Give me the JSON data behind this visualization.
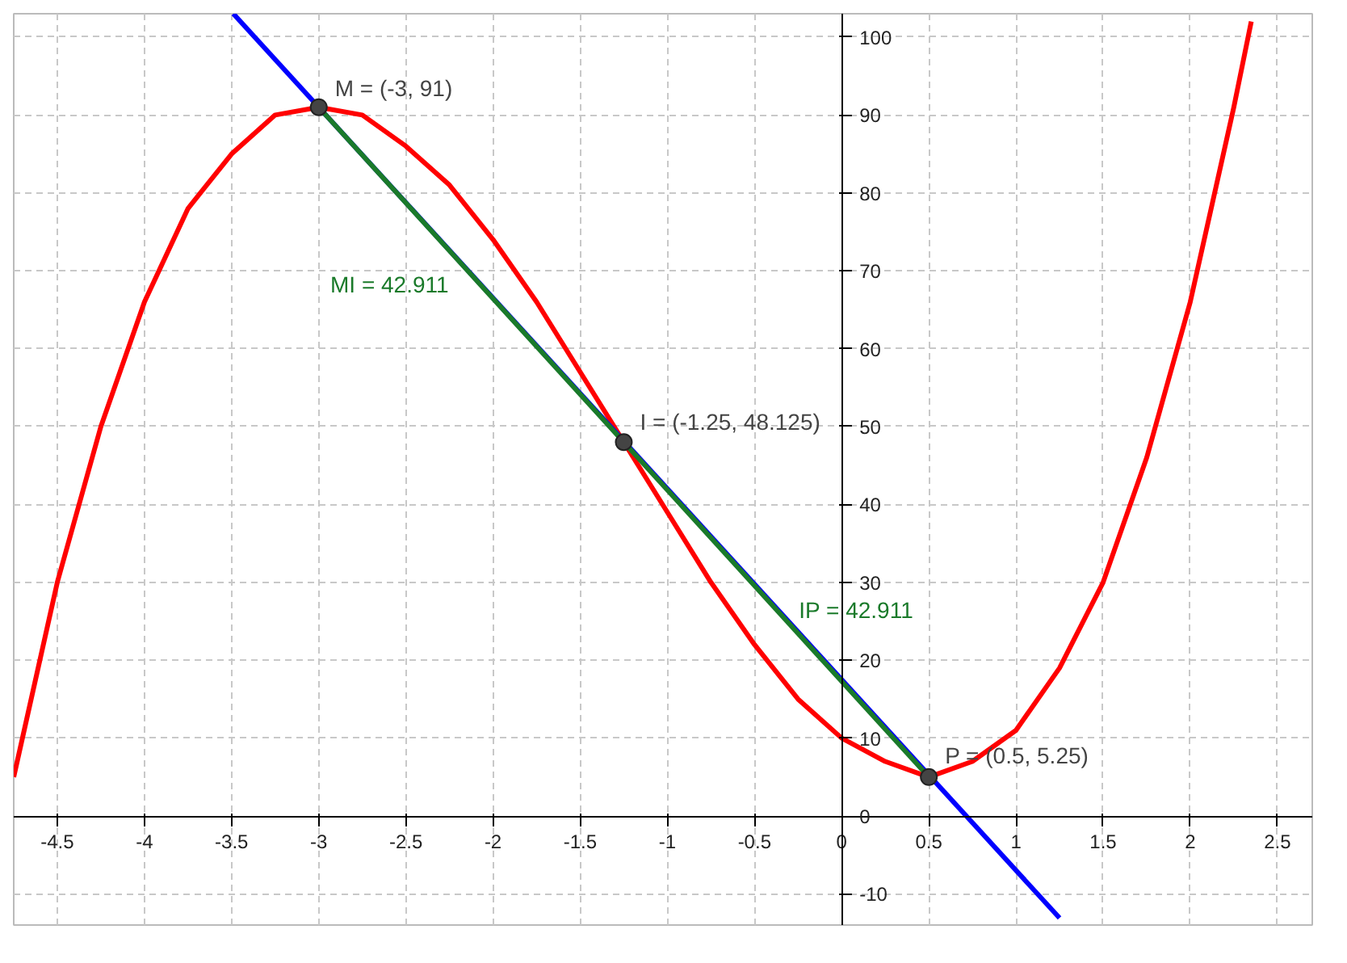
{
  "chart_data": {
    "type": "line",
    "xlim": [
      -4.75,
      2.7
    ],
    "ylim": [
      -14,
      103
    ],
    "xticks": [
      -4.5,
      -4,
      -3.5,
      -3,
      -2.5,
      -2,
      -1.5,
      -1,
      -0.5,
      0,
      0.5,
      1,
      1.5,
      2,
      2.5
    ],
    "yticks": [
      -10,
      0,
      10,
      20,
      30,
      40,
      50,
      60,
      70,
      80,
      90,
      100
    ],
    "grid": true,
    "series": [
      {
        "color": "#ff0000",
        "x": [
          -4.75,
          -4.5,
          -4.25,
          -4,
          -3.75,
          -3.5,
          -3.25,
          -3,
          -2.75,
          -2.5,
          -2.25,
          -2,
          -1.75,
          -1.5,
          -1.25,
          -1,
          -0.75,
          -0.5,
          -0.25,
          0,
          0.25,
          0.5,
          0.75,
          1,
          1.25,
          1.5,
          1.75,
          2,
          2.25,
          2.35
        ],
        "values": [
          5,
          30,
          50,
          66,
          78,
          85,
          90,
          91,
          90,
          86,
          81,
          74,
          66,
          57,
          48,
          39,
          30,
          22,
          15,
          10,
          7,
          5,
          7,
          11,
          19,
          30,
          46,
          66,
          91,
          102
        ]
      },
      {
        "color": "#0000ff",
        "x": [
          -3.49,
          1.25
        ],
        "values": [
          103,
          -13.1
        ]
      },
      {
        "name": "MI = 42.911",
        "color": "#1a7a2a",
        "x": [
          -3,
          -1.25
        ],
        "values": [
          91,
          48
        ]
      },
      {
        "name": "IP = 42.911",
        "color": "#1a7a2a",
        "x": [
          -1.25,
          0.5
        ],
        "values": [
          48,
          5
        ]
      },
      {
        "type": "scatter",
        "marker": "circle",
        "color": "#444444",
        "x": [
          -3,
          -1.25,
          0.5
        ],
        "values": [
          91,
          48,
          5
        ]
      }
    ],
    "annotations": [
      {
        "text": "M = (-3, 91)",
        "x": -3,
        "y": 91
      },
      {
        "text": "I = (-1.25, 48.125)",
        "x": -1.25,
        "y": 48.125
      },
      {
        "text": "P = (0.5, 5.25)",
        "x": 0.5,
        "y": 5.25
      }
    ]
  }
}
